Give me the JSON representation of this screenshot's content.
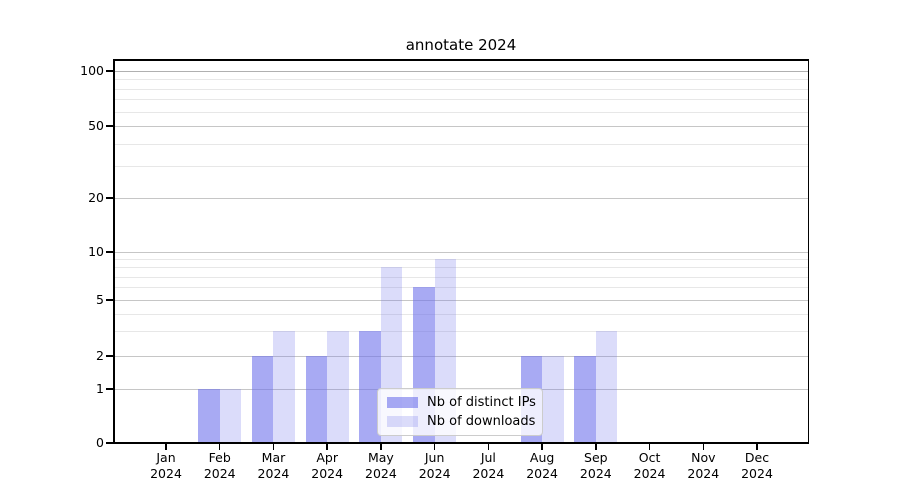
{
  "title": "annotate 2024",
  "colors": {
    "bar_base": "#6e72eb",
    "bar_dark_apparent": "#a8aaf7",
    "bar_light_apparent": "#dadbfa",
    "grid_major": "#c6c6c6",
    "grid_minor": "#e7e7e7",
    "axis": "#000000",
    "background": "#ffffff"
  },
  "chart_data": {
    "type": "bar",
    "title": "annotate 2024",
    "categories": [
      "Jan 2024",
      "Feb 2024",
      "Mar 2024",
      "Apr 2024",
      "May 2024",
      "Jun 2024",
      "Jul 2024",
      "Aug 2024",
      "Sep 2024",
      "Oct 2024",
      "Nov 2024",
      "Dec 2024"
    ],
    "series": [
      {
        "name": "Nb of distinct IPs",
        "color_rgb": "110,114,235",
        "fill_alpha": 0.6,
        "values": [
          0,
          1,
          2,
          2,
          3,
          6,
          0,
          2,
          2,
          0,
          0,
          0
        ]
      },
      {
        "name": "Nb of downloads",
        "color_rgb": "110,114,235",
        "fill_alpha": 0.25,
        "values": [
          0,
          1,
          3,
          3,
          8,
          9,
          0,
          2,
          3,
          0,
          0,
          0
        ]
      }
    ],
    "yscale": "symlog",
    "ylim": [
      0,
      115
    ],
    "y_ticks": [
      0,
      1,
      2,
      5,
      10,
      20,
      50,
      100
    ],
    "y_minor_ticks": [
      3,
      4,
      6,
      7,
      8,
      9,
      30,
      40,
      60,
      70,
      80,
      90
    ],
    "grid": true,
    "legend_position": "lower-center-inside"
  }
}
